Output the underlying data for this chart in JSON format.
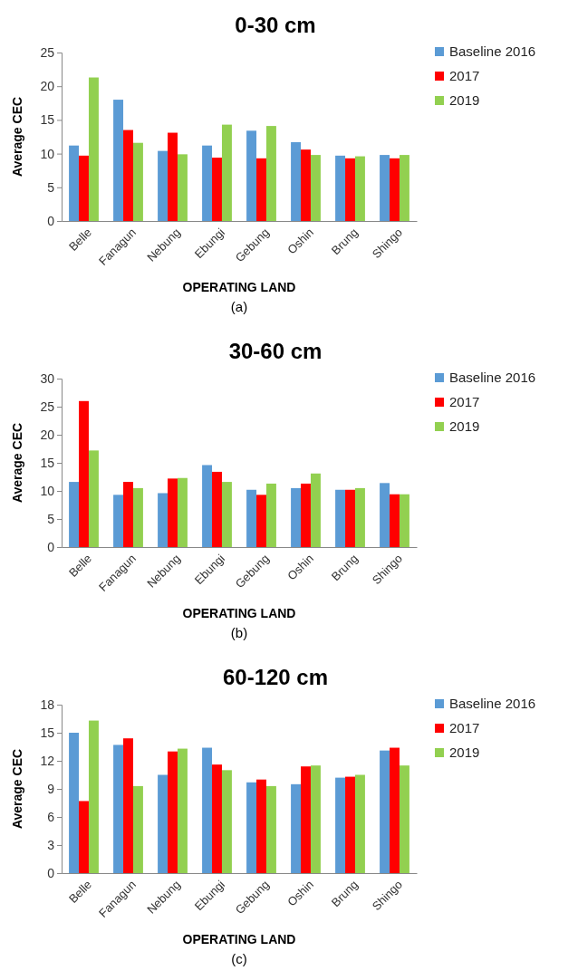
{
  "chart_data": [
    {
      "type": "bar",
      "title": "0-30 cm",
      "xlabel": "OPERATING LAND",
      "ylabel": "Average CEC",
      "annotations": [
        "(a)"
      ],
      "categories": [
        "Belle",
        "Fanagun",
        "Nebung",
        "Ebungi",
        "Gebung",
        "Oshin",
        "Brung",
        "Shingo"
      ],
      "ylim": [
        0,
        25
      ],
      "yticks": [
        0,
        5,
        10,
        15,
        20,
        25
      ],
      "legend": "top right",
      "series": [
        {
          "name": "Baseline 2016",
          "color": "#5b9bd5",
          "values": [
            11.2,
            18,
            10.4,
            11.2,
            13.4,
            11.7,
            9.7,
            9.8
          ]
        },
        {
          "name": "2017",
          "color": "#ff0000",
          "values": [
            9.7,
            13.5,
            13.1,
            9.4,
            9.3,
            10.6,
            9.3,
            9.3
          ]
        },
        {
          "name": "2019",
          "color": "#92d050",
          "values": [
            21.3,
            11.6,
            9.9,
            14.3,
            14.1,
            9.8,
            9.6,
            9.8
          ]
        }
      ]
    },
    {
      "type": "bar",
      "title": "30-60 cm",
      "xlabel": "OPERATING LAND",
      "ylabel": "Average CEC",
      "annotations": [
        "(b)"
      ],
      "categories": [
        "Belle",
        "Fanagun",
        "Nebung",
        "Ebungi",
        "Gebung",
        "Oshin",
        "Brung",
        "Shingo"
      ],
      "ylim": [
        0,
        30
      ],
      "yticks": [
        0,
        5,
        10,
        15,
        20,
        25,
        30
      ],
      "legend": "top right",
      "series": [
        {
          "name": "Baseline 2016",
          "color": "#5b9bd5",
          "values": [
            11.6,
            9.3,
            9.6,
            14.6,
            10.2,
            10.5,
            10.2,
            11.4
          ]
        },
        {
          "name": "2017",
          "color": "#ff0000",
          "values": [
            26,
            11.6,
            12.2,
            13.4,
            9.3,
            11.3,
            10.2,
            9.4
          ]
        },
        {
          "name": "2019",
          "color": "#92d050",
          "values": [
            17.2,
            10.5,
            12.3,
            11.6,
            11.3,
            13.1,
            10.5,
            9.4
          ]
        }
      ]
    },
    {
      "type": "bar",
      "title": "60-120 cm",
      "xlabel": "OPERATING LAND",
      "ylabel": "Average CEC",
      "annotations": [
        "(c)"
      ],
      "categories": [
        "Belle",
        "Fanagun",
        "Nebung",
        "Ebungi",
        "Gebung",
        "Oshin",
        "Brung",
        "Shingo"
      ],
      "ylim": [
        0,
        18
      ],
      "yticks": [
        0,
        3,
        6,
        9,
        12,
        15,
        18
      ],
      "legend": "top right",
      "series": [
        {
          "name": "Baseline 2016",
          "color": "#5b9bd5",
          "values": [
            15,
            13.7,
            10.5,
            13.4,
            9.7,
            9.5,
            10.2,
            13.1
          ]
        },
        {
          "name": "2017",
          "color": "#ff0000",
          "values": [
            7.7,
            14.4,
            13,
            11.6,
            10,
            11.4,
            10.3,
            13.4
          ]
        },
        {
          "name": "2019",
          "color": "#92d050",
          "values": [
            16.3,
            9.3,
            13.3,
            11,
            9.3,
            11.5,
            10.5,
            11.5
          ]
        }
      ]
    }
  ]
}
